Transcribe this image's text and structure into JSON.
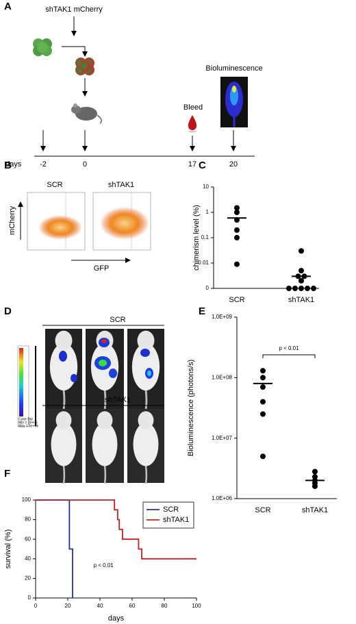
{
  "panel_labels": [
    "A",
    "B",
    "C",
    "D",
    "E",
    "F"
  ],
  "timeline": {
    "construct": "shTAK1 mCherry",
    "bleed": "Bleed",
    "imaging": "Bioluminescence",
    "axis_label": "days",
    "days": [
      "-2",
      "0",
      "17",
      "20"
    ]
  },
  "flow": {
    "titles": [
      "SCR",
      "shTAK1"
    ],
    "y_label": "mCherry",
    "x_label": "GFP"
  },
  "imaging": {
    "groups": [
      "SCR",
      "shTAK1"
    ],
    "colorbar": [
      "Color Bar",
      "Min = 2e+06",
      "Max = 5e+06"
    ]
  },
  "chart_data": [
    {
      "type": "dot",
      "ylabel": "chimerism level (%)",
      "categories": [
        "SCR",
        "shTAK1"
      ],
      "values": [
        [
          1.5,
          1,
          0.5,
          0.2,
          0.1,
          0.009
        ],
        [
          0.03,
          0.005,
          0.003,
          0.003,
          0.002,
          0,
          0,
          0,
          0,
          0
        ]
      ],
      "means": [
        0.6,
        0.003
      ],
      "log": true,
      "color": "#000000",
      "ylim": [
        0,
        10
      ],
      "yticks": [
        0,
        0.01,
        0.1,
        1,
        10
      ]
    },
    {
      "type": "dot",
      "ylabel": "Bioluminescence (photons/s)",
      "annotation": "p < 0.01",
      "categories": [
        "SCR",
        "shTAK1"
      ],
      "values": [
        [
          130000000,
          100000000,
          70000000,
          40000000,
          25000000,
          5000000
        ],
        [
          2800000,
          2300000,
          2000000,
          1800000,
          1600000
        ]
      ],
      "means": [
        80000000,
        2000000
      ],
      "log": true,
      "color": "#000000",
      "ylim": [
        1000000,
        1000000000
      ],
      "yticks": [
        {
          "value": 1000000,
          "label": "1.0E+06"
        },
        {
          "value": 10000000,
          "label": "1.0E+07"
        },
        {
          "value": 100000000,
          "label": "1.0E+08"
        },
        {
          "value": 1000000000,
          "label": "1.0E+09"
        }
      ]
    },
    {
      "type": "step",
      "xlabel": "days",
      "ylabel": "survival (%)",
      "annotation": "p < 0.01",
      "legend": "upper right",
      "series": [
        {
          "name": "SCR",
          "color": "#1f2fa8",
          "x": [
            0,
            21,
            23
          ],
          "values": [
            100,
            50,
            0
          ]
        },
        {
          "name": "shTAK1",
          "color": "#c8201e",
          "x": [
            0,
            49,
            51,
            52,
            54,
            64,
            66,
            100
          ],
          "values": [
            100,
            90,
            80,
            70,
            60,
            50,
            40,
            40
          ]
        }
      ],
      "xlim": [
        0,
        100
      ],
      "xticks": [
        0,
        20,
        40,
        60,
        80,
        100
      ],
      "ylim": [
        0,
        100
      ],
      "yticks": [
        0,
        20,
        40,
        60,
        80,
        100
      ]
    }
  ]
}
